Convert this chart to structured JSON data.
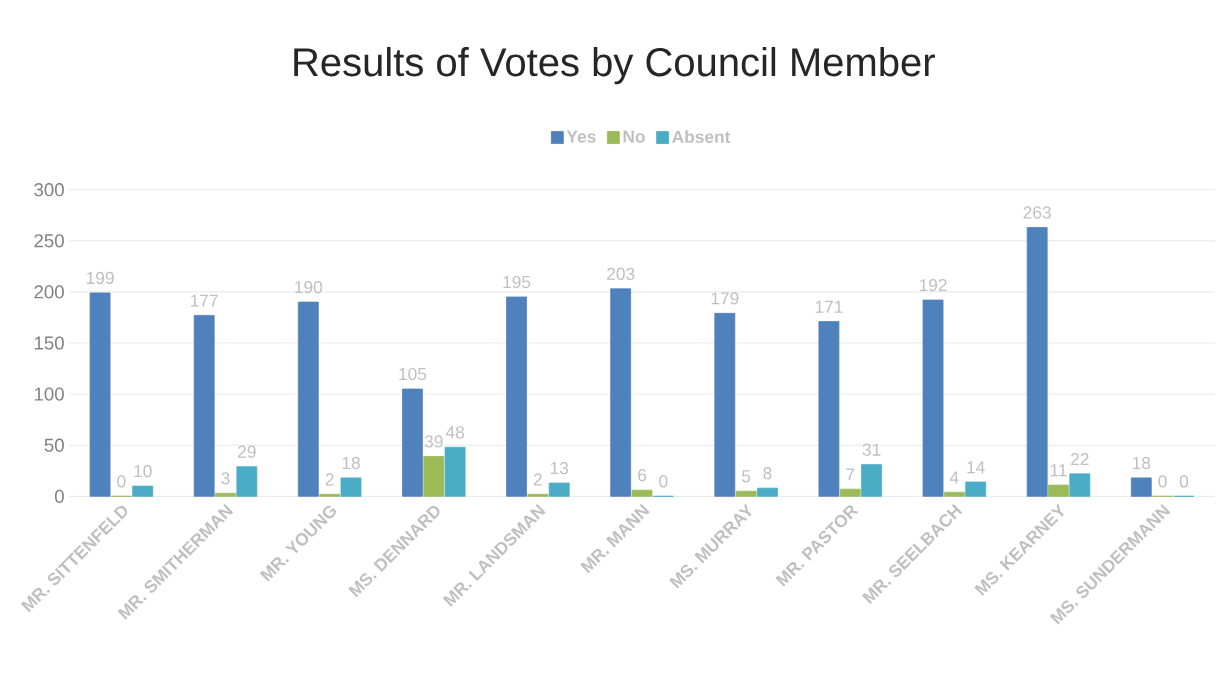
{
  "chart_data": {
    "type": "bar",
    "title": "Results of Votes by Council Member",
    "categories": [
      "MR. SITTENFELD",
      "MR. SMITHERMAN",
      "MR. YOUNG",
      "MS. DENNARD",
      "MR. LANDSMAN",
      "MR. MANN",
      "MS. MURRAY",
      "MR. PASTOR",
      "MR. SEELBACH",
      "MS. KEARNEY",
      "MS. SUNDERMANN"
    ],
    "series": [
      {
        "name": "Yes",
        "color": "#4f81bd",
        "values": [
          199,
          177,
          190,
          105,
          195,
          203,
          179,
          171,
          192,
          263,
          18
        ]
      },
      {
        "name": "No",
        "color": "#9bbb59",
        "values": [
          0,
          3,
          2,
          39,
          2,
          6,
          5,
          7,
          4,
          11,
          0
        ]
      },
      {
        "name": "Absent",
        "color": "#4bacc6",
        "values": [
          10,
          29,
          18,
          48,
          13,
          0,
          8,
          31,
          14,
          22,
          0
        ]
      }
    ],
    "ylim": [
      0,
      300
    ],
    "yticks": [
      0,
      50,
      100,
      150,
      200,
      250,
      300
    ],
    "grid": "y",
    "legend": "top",
    "data_labels": true
  }
}
